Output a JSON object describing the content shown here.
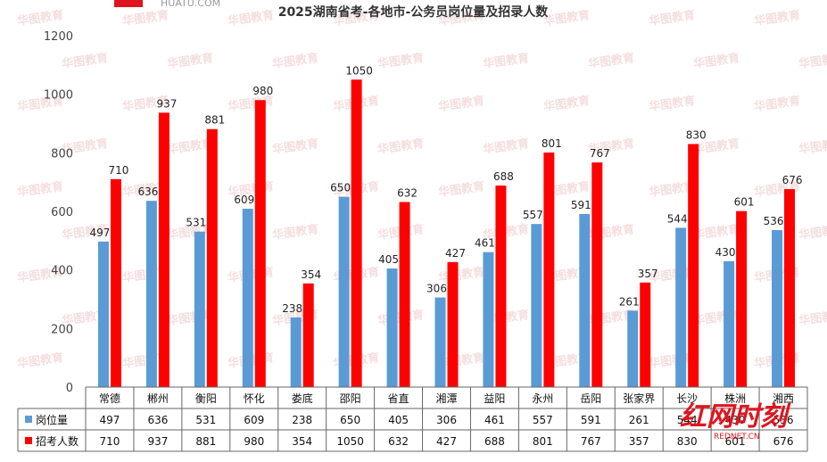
{
  "header": {
    "site": "HUATU.COM"
  },
  "chart_data": {
    "type": "bar",
    "title": "2025湖南省考-各地市-公务员岗位量及招录人数",
    "categories": [
      "常德",
      "郴州",
      "衡阳",
      "怀化",
      "娄底",
      "邵阳",
      "省直",
      "湘潭",
      "益阳",
      "永州",
      "岳阳",
      "张家界",
      "长沙",
      "株洲",
      "湘西"
    ],
    "series": [
      {
        "name": "岗位量",
        "color": "#5b9bd5",
        "values": [
          497,
          636,
          531,
          609,
          238,
          650,
          405,
          306,
          461,
          557,
          591,
          261,
          544,
          430,
          536
        ]
      },
      {
        "name": "招考人数",
        "color": "#ff0000",
        "values": [
          710,
          937,
          881,
          980,
          354,
          1050,
          632,
          427,
          688,
          801,
          767,
          357,
          830,
          601,
          676
        ]
      }
    ],
    "ylim": [
      0,
      1200
    ],
    "yticks": [
      0,
      200,
      400,
      600,
      800,
      1000,
      1200
    ],
    "grid": false,
    "legend": "data-table"
  },
  "watermark": "华图教育",
  "brand": {
    "name": "红网时刻",
    "sub": "REDNET.CN"
  }
}
